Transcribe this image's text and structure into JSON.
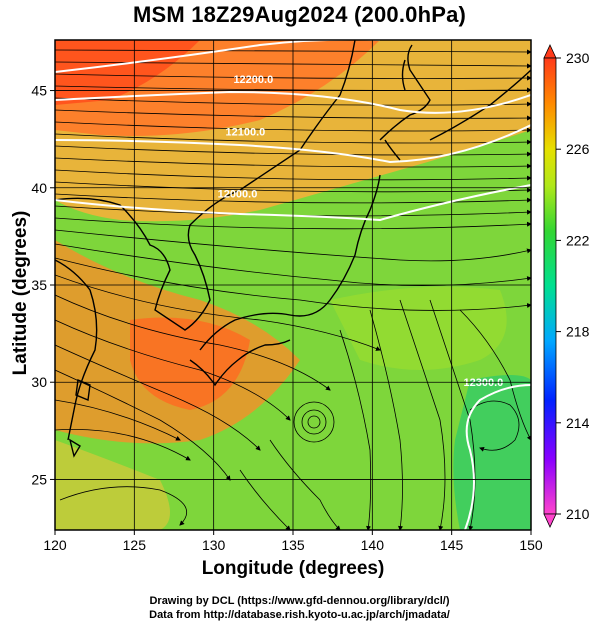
{
  "title": "MSM 18Z29Aug2024 (200.0hPa)",
  "xaxis": {
    "label": "Longitude (degrees)",
    "ticks": [
      120,
      125,
      130,
      135,
      140,
      145,
      150
    ],
    "range": [
      120,
      150
    ]
  },
  "yaxis": {
    "label": "Latitude  (degrees)",
    "ticks": [
      25,
      30,
      35,
      40,
      45
    ],
    "range": [
      22.4,
      47.6
    ]
  },
  "colorbar": {
    "ticks": [
      210,
      214,
      218,
      222,
      226,
      230
    ],
    "range": [
      210,
      230
    ]
  },
  "contour_labels": [
    {
      "text": "12200.0",
      "lon": 132.5,
      "lat": 45.4
    },
    {
      "text": "12100.0",
      "lon": 132.0,
      "lat": 42.7
    },
    {
      "text": "12000.0",
      "lon": 131.5,
      "lat": 39.5
    },
    {
      "text": "12300.0",
      "lon": 147.0,
      "lat": 29.8
    }
  ],
  "credits": {
    "line1": "Drawing by DCL (https://www.gfd-dennou.org/library/dcl/)",
    "line2": "Data from http://database.rish.kyoto-u.ac.jp/arch/jmadata/"
  }
}
